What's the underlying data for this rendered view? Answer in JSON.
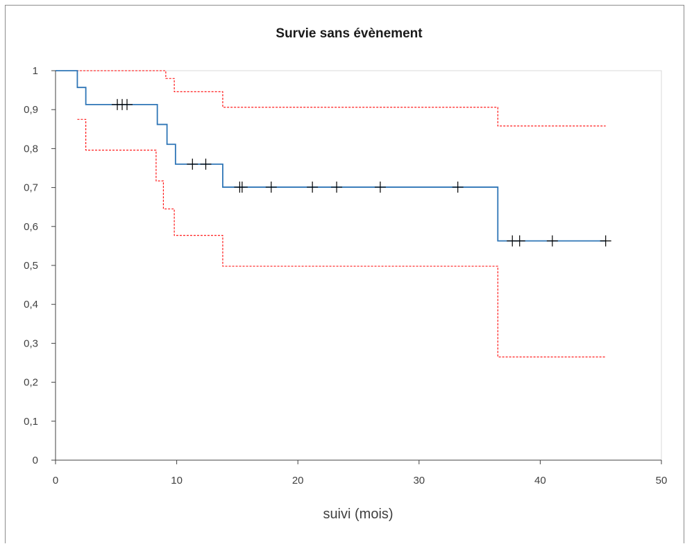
{
  "chart_data": {
    "type": "line",
    "title": "Survie sans évènement",
    "xlabel": "suivi (mois)",
    "ylabel": "",
    "xlim": [
      0,
      50
    ],
    "ylim": [
      0,
      1
    ],
    "x_ticks": [
      "0",
      "10",
      "20",
      "30",
      "40",
      "50"
    ],
    "y_ticks": [
      "0",
      "0,1",
      "0,2",
      "0,3",
      "0,4",
      "0,5",
      "0,6",
      "0,7",
      "0,8",
      "0,9",
      "1"
    ],
    "grid": false,
    "legend": "none",
    "series": [
      {
        "role": "survival",
        "style": "step-solid",
        "color": "#2e75b6",
        "steps": [
          [
            0,
            1.0
          ],
          [
            1.8,
            0.957
          ],
          [
            2.5,
            0.913
          ],
          [
            8.4,
            0.862
          ],
          [
            9.2,
            0.811
          ],
          [
            9.9,
            0.76
          ],
          [
            13.8,
            0.701
          ],
          [
            36.5,
            0.563
          ]
        ],
        "x_end": 45.4
      },
      {
        "role": "ci-upper",
        "style": "step-dashed",
        "color": "#ff0000",
        "steps": [
          [
            0,
            1.0
          ],
          [
            9.1,
            0.98
          ],
          [
            9.8,
            0.946
          ],
          [
            13.8,
            0.906
          ],
          [
            36.5,
            0.858
          ]
        ],
        "x_end": 45.4
      },
      {
        "role": "ci-lower",
        "style": "step-dashed",
        "color": "#ff0000",
        "steps": [
          [
            1.8,
            0.875
          ],
          [
            2.5,
            0.796
          ],
          [
            8.3,
            0.717
          ],
          [
            8.9,
            0.645
          ],
          [
            9.8,
            0.577
          ],
          [
            13.8,
            0.498
          ],
          [
            36.5,
            0.265
          ]
        ],
        "x_end": 45.4
      }
    ],
    "censored": {
      "color": "#000000",
      "points": [
        [
          5.1,
          0.913
        ],
        [
          5.5,
          0.913
        ],
        [
          5.9,
          0.913
        ],
        [
          11.3,
          0.76
        ],
        [
          12.4,
          0.76
        ],
        [
          15.2,
          0.701
        ],
        [
          15.4,
          0.701
        ],
        [
          17.8,
          0.701
        ],
        [
          21.2,
          0.701
        ],
        [
          23.2,
          0.701
        ],
        [
          26.8,
          0.701
        ],
        [
          33.2,
          0.701
        ],
        [
          37.7,
          0.563
        ],
        [
          38.3,
          0.563
        ],
        [
          41.0,
          0.563
        ],
        [
          45.4,
          0.563
        ]
      ]
    },
    "axis_color": "#404040",
    "plot_border_color": "#d9d9d9"
  }
}
